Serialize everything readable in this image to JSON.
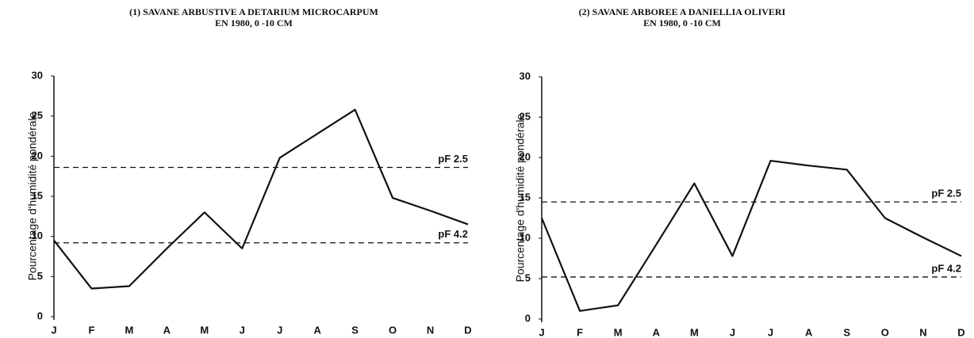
{
  "chart_data": [
    {
      "type": "line",
      "title": "(1) SAVANE ARBUSTIVE A DETARIUM MICROCARPUM",
      "subtitle": "EN 1980, 0 -10 CM",
      "y_label": "Pourcentage d'humidité pondérale",
      "categories": [
        "J",
        "F",
        "M",
        "A",
        "M",
        "J",
        "J",
        "A",
        "S",
        "O",
        "N",
        "D"
      ],
      "values": [
        9.5,
        3.5,
        3.8,
        8.5,
        13,
        8.5,
        19.8,
        22.8,
        25.8,
        14.8,
        13.2,
        11.5
      ],
      "color": "#111111",
      "ylim": [
        0,
        30
      ],
      "yticks": [
        0,
        5,
        10,
        15,
        20,
        25,
        30
      ],
      "reference_lines": [
        {
          "label": "pF 2.5",
          "value": 18.6
        },
        {
          "label": "pF 4.2",
          "value": 9.2
        }
      ]
    },
    {
      "type": "line",
      "title": "(2) SAVANE ARBOREE A DANIELLIA OLIVERI",
      "subtitle": "EN 1980, 0 -10 CM",
      "y_label": "Pourcentage d'humidité pondérale",
      "categories": [
        "J",
        "F",
        "M",
        "A",
        "M",
        "J",
        "J",
        "A",
        "S",
        "O",
        "N",
        "D"
      ],
      "values": [
        12.5,
        1,
        1.7,
        9.2,
        16.8,
        7.8,
        19.6,
        19,
        18.5,
        12.5,
        10.1,
        7.8
      ],
      "color": "#111111",
      "ylim": [
        0,
        30
      ],
      "yticks": [
        0,
        5,
        10,
        15,
        20,
        25,
        30
      ],
      "reference_lines": [
        {
          "label": "pF 2.5",
          "value": 14.5
        },
        {
          "label": "pF 4.2",
          "value": 5.2
        }
      ]
    }
  ]
}
